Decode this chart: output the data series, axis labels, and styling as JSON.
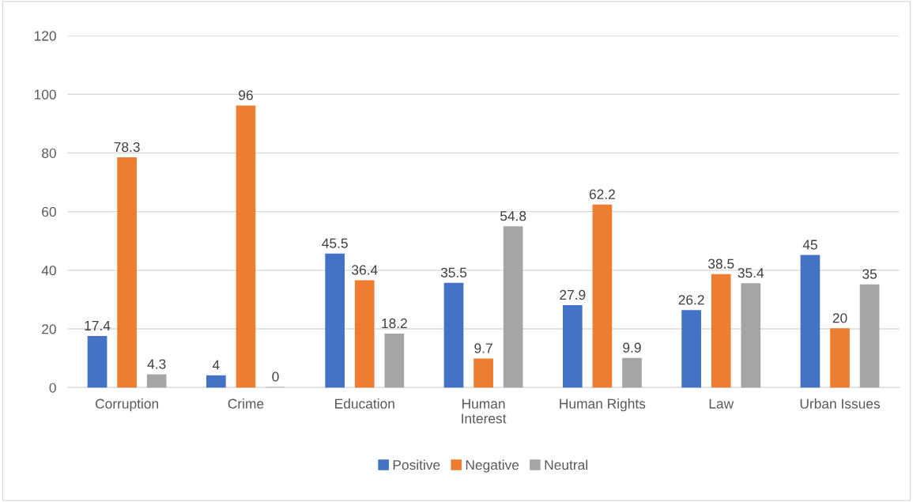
{
  "chart_data": {
    "type": "bar",
    "categories": [
      "Corruption",
      "Crime",
      "Education",
      "Human Interest",
      "Human Rights",
      "Law",
      "Urban Issues"
    ],
    "series": [
      {
        "name": "Positive",
        "color": "#4472c4",
        "values": [
          17.4,
          4,
          45.5,
          35.5,
          27.9,
          26.2,
          45
        ]
      },
      {
        "name": "Negative",
        "color": "#ed7d31",
        "values": [
          78.3,
          96,
          36.4,
          9.7,
          62.2,
          38.5,
          20
        ]
      },
      {
        "name": "Neutral",
        "color": "#a5a5a5",
        "values": [
          4.3,
          0,
          18.2,
          54.8,
          9.9,
          35.4,
          35
        ]
      }
    ],
    "ylim": [
      0,
      120
    ],
    "yticks": [
      0,
      20,
      40,
      60,
      80,
      100,
      120
    ],
    "grid": "y",
    "legend": "bottom",
    "data_labels": true
  }
}
